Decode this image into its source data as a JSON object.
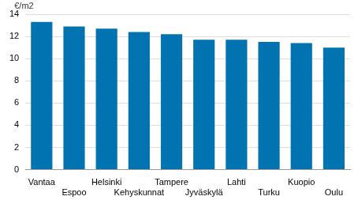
{
  "chart_data": {
    "type": "bar",
    "ylabel": "€/m2",
    "categories": [
      "Vantaa",
      "Espoo",
      "Helsinki",
      "Kehyskunnat",
      "Tampere",
      "Jyväskylä",
      "Lahti",
      "Turku",
      "Kuopio",
      "Oulu"
    ],
    "values": [
      13.3,
      12.9,
      12.7,
      12.4,
      12.2,
      11.7,
      11.7,
      11.5,
      11.4,
      11.0
    ],
    "color": "#0073b0",
    "ylim": [
      0,
      14
    ],
    "yticks": [
      0,
      2,
      4,
      6,
      8,
      10,
      12,
      14
    ],
    "grid": true
  }
}
